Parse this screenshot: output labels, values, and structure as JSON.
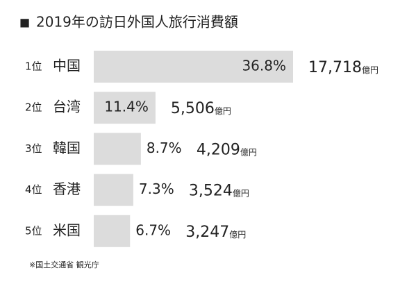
{
  "chart_data": {
    "type": "bar",
    "orientation": "horizontal",
    "title": "2019年の訪日外国人旅行消費額",
    "title_marker": "■",
    "ranks": [
      "1位",
      "2位",
      "3位",
      "4位",
      "5位"
    ],
    "categories": [
      "中国",
      "台湾",
      "韓国",
      "香港",
      "米国"
    ],
    "values": [
      36.8,
      11.4,
      8.7,
      7.3,
      6.7
    ],
    "value_labels": [
      "36.8%",
      "11.4%",
      "8.7%",
      "7.3%",
      "6.7%"
    ],
    "amounts": [
      17718,
      5506,
      4209,
      3524,
      3247
    ],
    "amount_labels": [
      "17,718",
      "5,506",
      "4,209",
      "3,524",
      "3,247"
    ],
    "amount_unit": "億円",
    "color": "#dcdcdc",
    "source": "※国土交通省 観光庁"
  }
}
